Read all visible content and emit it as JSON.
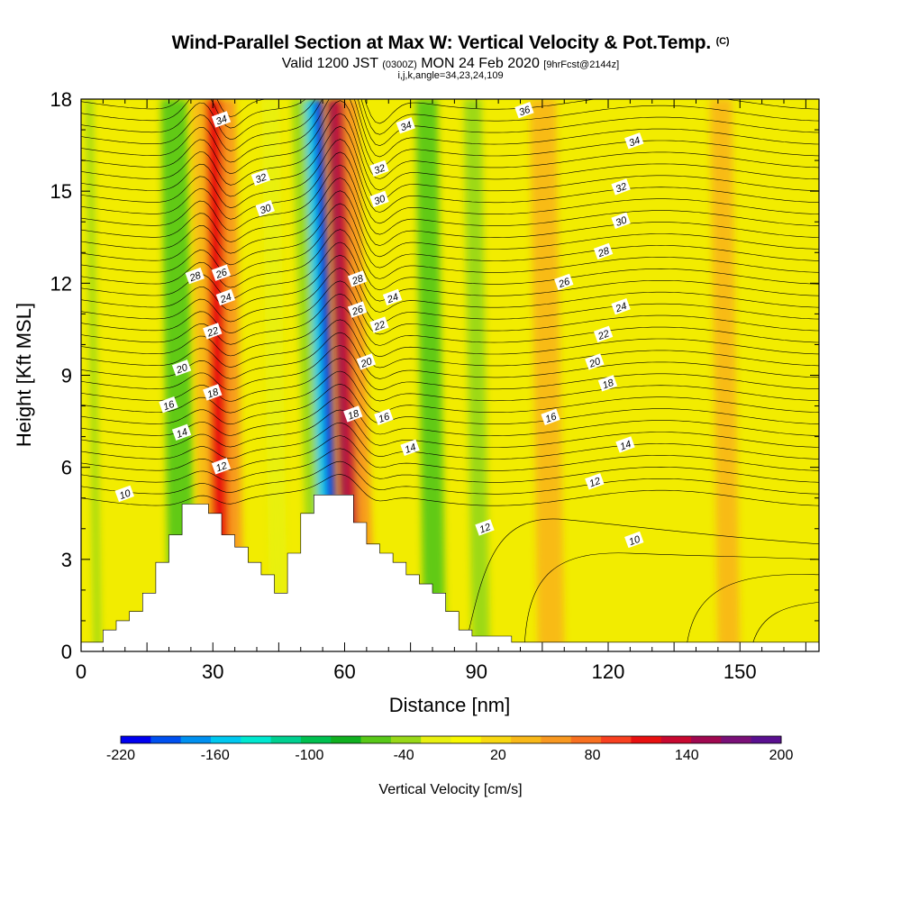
{
  "chart_data": {
    "type": "heatmap",
    "title": "Wind-Parallel Section at Max W: Vertical Velocity & Pot.Temp.",
    "title_mark": "(C)",
    "subtitle_main": "Valid 1200 JST",
    "subtitle_utc": "(0300Z)",
    "subtitle_date": "MON 24 Feb 2020",
    "subtitle_fcst": "[9hrFcst@2144z]",
    "subtitle2": "i,j,k,angle=34,23,24,109",
    "xlabel": "Distance [nm]",
    "ylabel": "Height [Kft MSL]",
    "xlim": [
      0,
      168
    ],
    "ylim": [
      0,
      18
    ],
    "x_ticks": [
      "0",
      "30",
      "60",
      "90",
      "120",
      "150"
    ],
    "y_ticks": [
      "0",
      "3",
      "6",
      "9",
      "12",
      "15",
      "18"
    ],
    "colorbar": {
      "label": "Vertical Velocity [cm/s]",
      "tick_labels": [
        "-220",
        "-160",
        "-100",
        "-40",
        "20",
        "80",
        "140",
        "200"
      ],
      "colors": [
        "#0000f0",
        "#0050f0",
        "#0090f0",
        "#00c8f0",
        "#00e8d0",
        "#00d090",
        "#00c050",
        "#10b020",
        "#58c818",
        "#98d818",
        "#e8f010",
        "#f8f800",
        "#f8d810",
        "#f8b818",
        "#f89820",
        "#f87020",
        "#f84020",
        "#e81010",
        "#c80830",
        "#a00850",
        "#7a1078",
        "#5a1090"
      ]
    },
    "terrain_kft": [
      [
        0,
        0.3
      ],
      [
        5,
        0.3
      ],
      [
        5,
        0.7
      ],
      [
        8,
        0.7
      ],
      [
        8,
        1.0
      ],
      [
        11,
        1.0
      ],
      [
        11,
        1.3
      ],
      [
        14,
        1.3
      ],
      [
        14,
        1.9
      ],
      [
        17,
        1.9
      ],
      [
        17,
        2.9
      ],
      [
        20,
        2.9
      ],
      [
        20,
        3.8
      ],
      [
        23,
        3.8
      ],
      [
        23,
        4.8
      ],
      [
        29,
        4.8
      ],
      [
        29,
        4.5
      ],
      [
        32,
        4.5
      ],
      [
        32,
        3.8
      ],
      [
        35,
        3.8
      ],
      [
        35,
        3.4
      ],
      [
        38,
        3.4
      ],
      [
        38,
        2.9
      ],
      [
        41,
        2.9
      ],
      [
        41,
        2.5
      ],
      [
        44,
        2.5
      ],
      [
        44,
        1.9
      ],
      [
        47,
        1.9
      ],
      [
        47,
        3.2
      ],
      [
        50,
        3.2
      ],
      [
        50,
        4.5
      ],
      [
        53,
        4.5
      ],
      [
        53,
        5.1
      ],
      [
        62,
        5.1
      ],
      [
        62,
        4.2
      ],
      [
        65,
        4.2
      ],
      [
        65,
        3.5
      ],
      [
        68,
        3.5
      ],
      [
        68,
        3.2
      ],
      [
        71,
        3.2
      ],
      [
        71,
        2.9
      ],
      [
        74,
        2.9
      ],
      [
        74,
        2.5
      ],
      [
        77,
        2.5
      ],
      [
        77,
        2.2
      ],
      [
        80,
        2.2
      ],
      [
        80,
        1.9
      ],
      [
        83,
        1.9
      ],
      [
        83,
        1.3
      ],
      [
        86,
        1.3
      ],
      [
        86,
        0.7
      ],
      [
        89,
        0.7
      ],
      [
        89,
        0.5
      ],
      [
        98,
        0.5
      ],
      [
        98,
        0.3
      ],
      [
        168,
        0.3
      ]
    ],
    "vertical_velocity_bands": [
      {
        "x": 3,
        "w": 1.5,
        "value": -40
      },
      {
        "x": 20,
        "w": 6,
        "value": -60
      },
      {
        "x": 27,
        "w": 3,
        "value": 40
      },
      {
        "x": 30,
        "w": 4,
        "value": 120
      },
      {
        "x": 34,
        "w": 3,
        "value": 50
      },
      {
        "x": 43,
        "w": 4,
        "value": -20
      },
      {
        "x": 52,
        "w": 3,
        "value": -40
      },
      {
        "x": 55,
        "w": 2,
        "value": -150
      },
      {
        "x": 57,
        "w": 2,
        "value": -220
      },
      {
        "x": 60,
        "w": 2,
        "value": 160
      },
      {
        "x": 62,
        "w": 2,
        "value": 130
      },
      {
        "x": 64,
        "w": 3,
        "value": 60
      },
      {
        "x": 78,
        "w": 5,
        "value": -60
      },
      {
        "x": 89,
        "w": 4,
        "value": -30
      },
      {
        "x": 104,
        "w": 6,
        "value": 30
      },
      {
        "x": 145,
        "w": 5,
        "value": 30
      }
    ],
    "potential_temperature_levels": [
      10,
      12,
      14,
      16,
      18,
      20,
      22,
      24,
      26,
      28,
      30,
      32,
      34,
      36
    ],
    "contour_labels": [
      {
        "text": "34",
        "x": 32,
        "y": 17.3
      },
      {
        "text": "32",
        "x": 41,
        "y": 15.4
      },
      {
        "text": "30",
        "x": 42,
        "y": 14.4
      },
      {
        "text": "28",
        "x": 26,
        "y": 12.2
      },
      {
        "text": "26",
        "x": 32,
        "y": 12.3
      },
      {
        "text": "24",
        "x": 33,
        "y": 11.5
      },
      {
        "text": "22",
        "x": 30,
        "y": 10.4
      },
      {
        "text": "20",
        "x": 23,
        "y": 9.2
      },
      {
        "text": "18",
        "x": 30,
        "y": 8.4
      },
      {
        "text": "16",
        "x": 20,
        "y": 8.0
      },
      {
        "text": "14",
        "x": 23,
        "y": 7.1
      },
      {
        "text": "12",
        "x": 32,
        "y": 6.0
      },
      {
        "text": "10",
        "x": 10,
        "y": 5.1
      },
      {
        "text": "34",
        "x": 74,
        "y": 17.1
      },
      {
        "text": "32",
        "x": 68,
        "y": 15.7
      },
      {
        "text": "30",
        "x": 68,
        "y": 14.7
      },
      {
        "text": "28",
        "x": 63,
        "y": 12.1
      },
      {
        "text": "26",
        "x": 63,
        "y": 11.1
      },
      {
        "text": "24",
        "x": 71,
        "y": 11.5
      },
      {
        "text": "22",
        "x": 68,
        "y": 10.6
      },
      {
        "text": "20",
        "x": 65,
        "y": 9.4
      },
      {
        "text": "18",
        "x": 62,
        "y": 7.7
      },
      {
        "text": "16",
        "x": 69,
        "y": 7.6
      },
      {
        "text": "14",
        "x": 75,
        "y": 6.6
      },
      {
        "text": "12",
        "x": 92,
        "y": 4.0
      },
      {
        "text": "36",
        "x": 101,
        "y": 17.6
      },
      {
        "text": "34",
        "x": 126,
        "y": 16.6
      },
      {
        "text": "32",
        "x": 123,
        "y": 15.1
      },
      {
        "text": "30",
        "x": 123,
        "y": 14.0
      },
      {
        "text": "28",
        "x": 119,
        "y": 13.0
      },
      {
        "text": "26",
        "x": 110,
        "y": 12.0
      },
      {
        "text": "24",
        "x": 123,
        "y": 11.2
      },
      {
        "text": "22",
        "x": 119,
        "y": 10.3
      },
      {
        "text": "20",
        "x": 117,
        "y": 9.4
      },
      {
        "text": "18",
        "x": 120,
        "y": 8.7
      },
      {
        "text": "16",
        "x": 107,
        "y": 7.6
      },
      {
        "text": "14",
        "x": 124,
        "y": 6.7
      },
      {
        "text": "12",
        "x": 117,
        "y": 5.5
      },
      {
        "text": "10",
        "x": 126,
        "y": 3.6
      }
    ]
  }
}
